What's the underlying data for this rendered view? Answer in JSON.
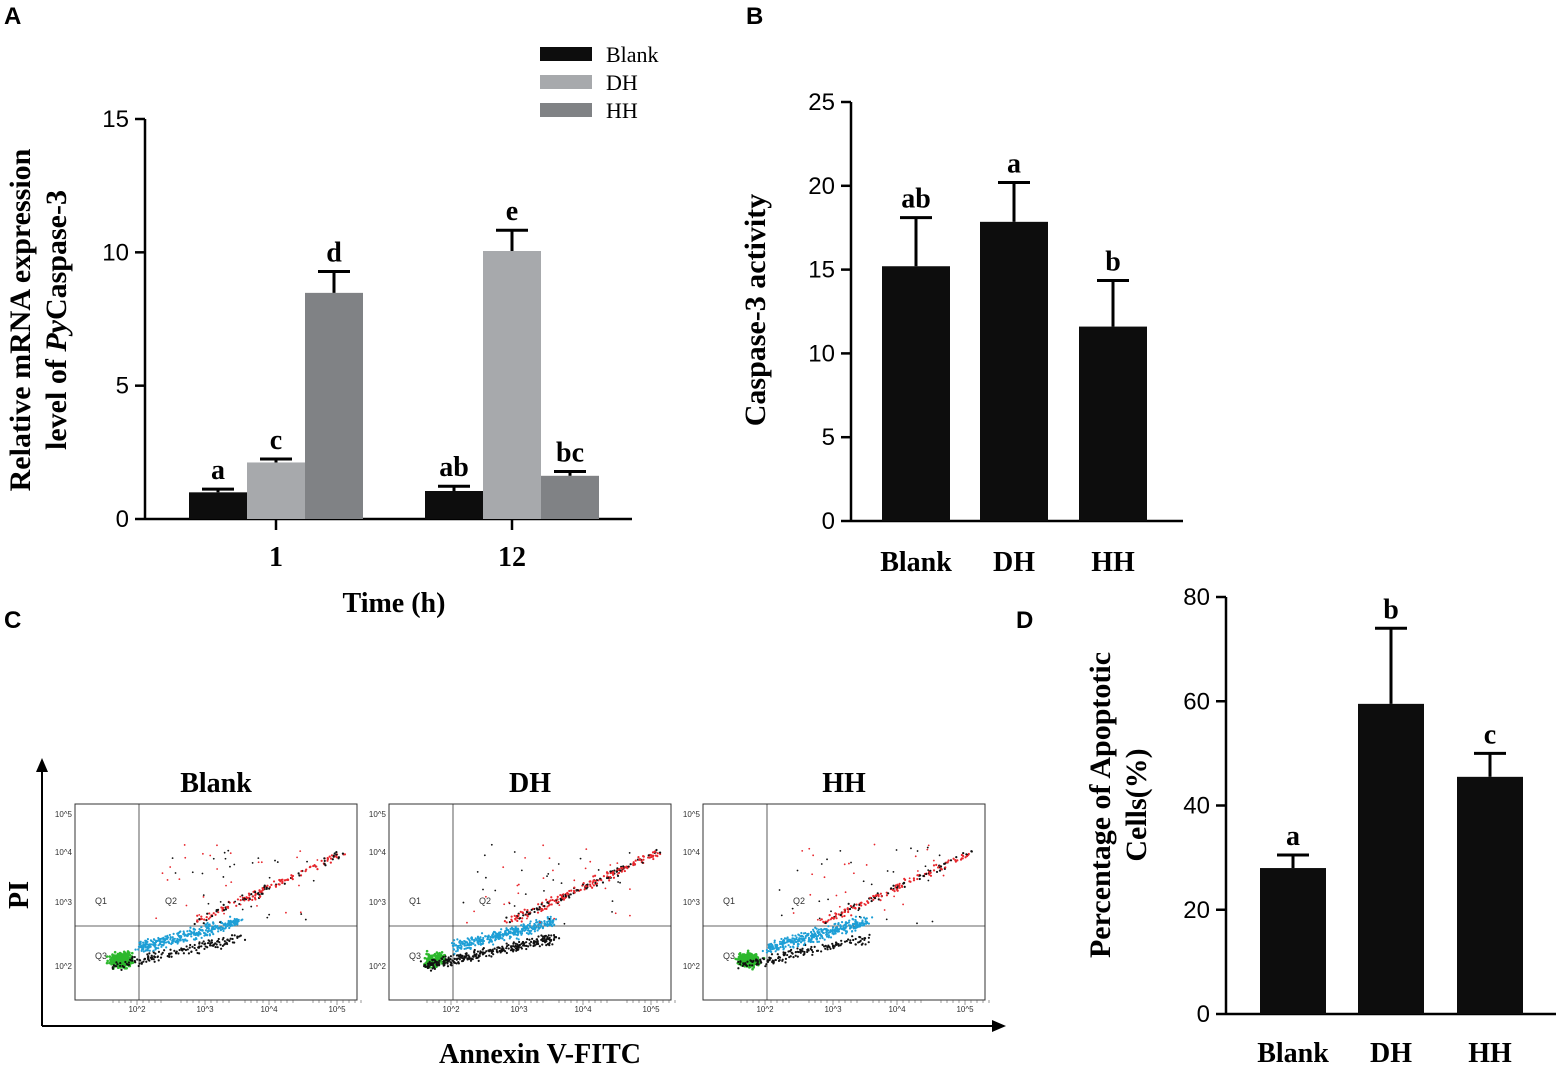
{
  "panels": {
    "A": "A",
    "B": "B",
    "C": "C",
    "D": "D"
  },
  "chart_data": [
    {
      "id": "A",
      "type": "bar",
      "title": "",
      "xlabel": "Time (h)",
      "ylabel_line1": "Relative mRNA expression",
      "ylabel_line2_prefix": "level of ",
      "ylabel_line2_italic": "Py",
      "ylabel_line2_suffix": "Caspase-3",
      "ylim": [
        0,
        15
      ],
      "yticks": [
        0,
        5,
        10,
        15
      ],
      "categories": [
        "1",
        "12"
      ],
      "legend_position": "top-center",
      "series": [
        {
          "name": "Blank",
          "color": "#0d0d0d",
          "values": [
            1.0,
            1.05
          ],
          "errors": [
            0.12,
            0.18
          ],
          "labels": [
            "a",
            "ab"
          ]
        },
        {
          "name": "DH",
          "color": "#a7a9ac",
          "values": [
            2.12,
            10.05
          ],
          "errors": [
            0.13,
            0.78
          ],
          "labels": [
            "c",
            "e"
          ]
        },
        {
          "name": "HH",
          "color": "#808285",
          "values": [
            8.48,
            1.62
          ],
          "errors": [
            0.8,
            0.16
          ],
          "labels": [
            "d",
            "bc"
          ]
        }
      ]
    },
    {
      "id": "B",
      "type": "bar",
      "title": "",
      "xlabel": "",
      "ylabel": "Caspase-3 activity",
      "ylim": [
        0,
        25
      ],
      "yticks": [
        0,
        5,
        10,
        15,
        20,
        25
      ],
      "categories": [
        "Blank",
        "DH",
        "HH"
      ],
      "values": [
        15.2,
        17.85,
        11.6
      ],
      "errors": [
        2.9,
        2.35,
        2.75
      ],
      "labels": [
        "ab",
        "a",
        "b"
      ],
      "color": "#0d0d0d"
    },
    {
      "id": "D",
      "type": "bar",
      "title": "",
      "xlabel": "",
      "ylabel_line1": "Percentage of Apoptotic",
      "ylabel_line2": "Cells(%)",
      "ylim": [
        0,
        80
      ],
      "yticks": [
        0,
        20,
        40,
        60,
        80
      ],
      "categories": [
        "Blank",
        "DH",
        "HH"
      ],
      "values": [
        28.0,
        59.5,
        45.5
      ],
      "errors": [
        2.5,
        14.5,
        4.5
      ],
      "labels": [
        "a",
        "b",
        "c"
      ],
      "color": "#0d0d0d"
    },
    {
      "id": "C",
      "type": "scatter",
      "title": "",
      "xlabel": "Annexin V-FITC",
      "ylabel": "PI",
      "plots": [
        {
          "title": "Blank",
          "quadrants": [
            "Q1",
            "Q2",
            "Q3"
          ]
        },
        {
          "title": "DH",
          "quadrants": [
            "Q1",
            "Q2",
            "Q3"
          ]
        },
        {
          "title": "HH",
          "quadrants": [
            "Q1",
            "Q2",
            "Q3"
          ]
        }
      ],
      "x_ticks": [
        "10^2",
        "10^3",
        "10^4",
        "10^5"
      ],
      "y_ticks": [
        "10^2",
        "10^3",
        "10^4",
        "10^5"
      ],
      "colors": {
        "viable": "#2db82d",
        "early_apoptotic": "#1e9fd6",
        "late_apoptotic": "#e8262c",
        "other": "#111111"
      }
    }
  ]
}
